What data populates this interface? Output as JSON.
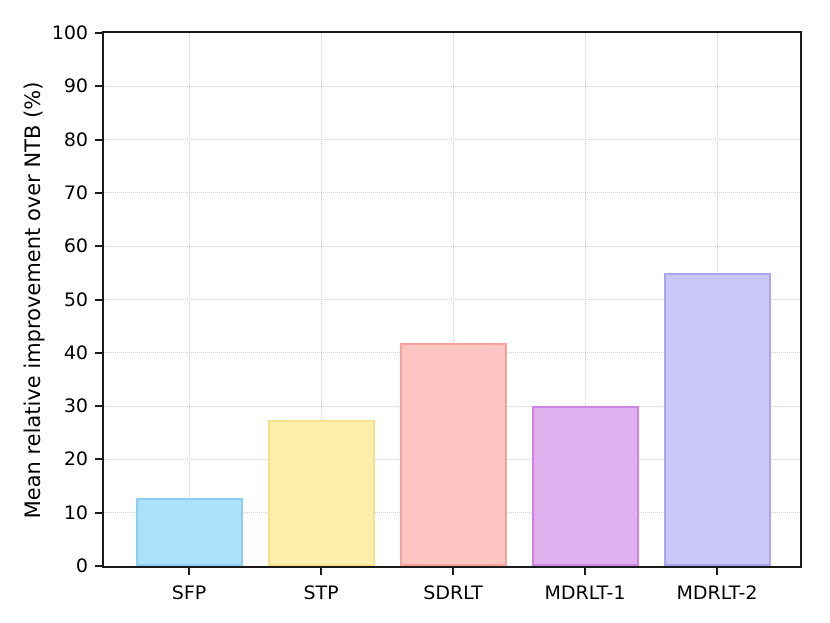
{
  "chart_data": {
    "type": "bar",
    "title": "",
    "xlabel": "",
    "ylabel": "Mean relative improvement over NTB (%)",
    "categories": [
      "SFP",
      "STP",
      "SDRLT",
      "MDRLT-1",
      "MDRLT-2"
    ],
    "values": [
      12.7,
      27.4,
      41.8,
      30.0,
      55.0
    ],
    "bar_face_colors": [
      "#ADE0F9",
      "#FBEFAB",
      "#FCC5C2",
      "#DFAFEE",
      "#C9C7F8"
    ],
    "bar_edge_colors": [
      "#8CCFF2",
      "#F5E189",
      "#F8A19D",
      "#CD85E4",
      "#A9A5F0"
    ],
    "ylim": [
      0,
      100
    ],
    "ytick_step": 10,
    "ytick_labels": [
      "0",
      "10",
      "20",
      "30",
      "40",
      "50",
      "60",
      "70",
      "80",
      "90",
      "100"
    ],
    "grid": "dotted, horizontal and vertical",
    "legend": "none",
    "frame": "full box spines",
    "spine_color": "#1a1a1a",
    "grid_color": "#d2d2d2",
    "background_color": "#ffffff"
  }
}
